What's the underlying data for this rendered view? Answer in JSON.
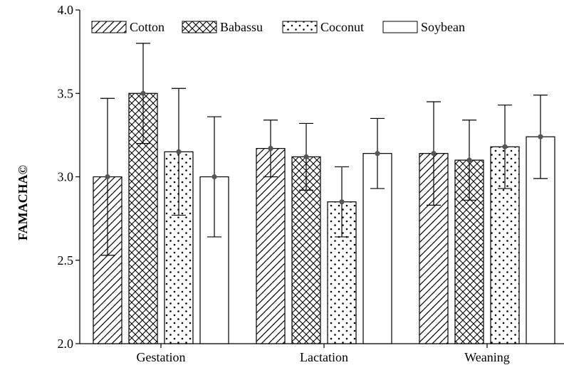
{
  "chart_data": {
    "type": "bar",
    "title": "",
    "xlabel": "",
    "ylabel": "FAMACHA©",
    "ylim": [
      2.0,
      4.0
    ],
    "yticks": [
      "2.0",
      "2.5",
      "3.0",
      "3.5",
      "4.0"
    ],
    "categories": [
      "Gestation",
      "Lactation",
      "Weaning"
    ],
    "series": [
      {
        "name": "Cotton",
        "pattern": "diagonal-hatch",
        "values": [
          3.0,
          3.17,
          3.14
        ],
        "errors": [
          0.47,
          0.17,
          0.31
        ]
      },
      {
        "name": "Babassu",
        "pattern": "cross-hatch",
        "values": [
          3.5,
          3.12,
          3.1
        ],
        "errors": [
          0.3,
          0.2,
          0.24
        ]
      },
      {
        "name": "Coconut",
        "pattern": "dots",
        "values": [
          3.15,
          2.85,
          3.18
        ],
        "errors": [
          0.38,
          0.21,
          0.25
        ]
      },
      {
        "name": "Soybean",
        "pattern": "plain",
        "values": [
          3.0,
          3.14,
          3.24
        ],
        "errors": [
          0.36,
          0.21,
          0.25
        ]
      }
    ],
    "legend_position": "top",
    "grid": false,
    "colors": {
      "bar_fill": "#ffffff",
      "stroke": "#000000",
      "mean_marker": "#555555"
    }
  }
}
